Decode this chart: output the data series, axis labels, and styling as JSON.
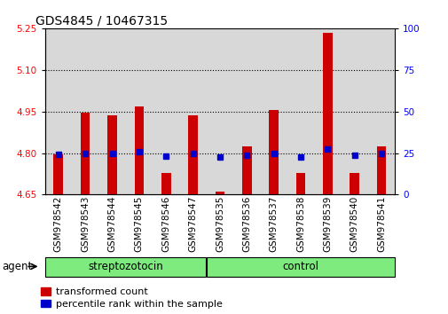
{
  "title": "GDS4845 / 10467315",
  "samples": [
    "GSM978542",
    "GSM978543",
    "GSM978544",
    "GSM978545",
    "GSM978546",
    "GSM978547",
    "GSM978535",
    "GSM978536",
    "GSM978537",
    "GSM978538",
    "GSM978539",
    "GSM978540",
    "GSM978541"
  ],
  "groups": [
    "streptozotocin",
    "streptozotocin",
    "streptozotocin",
    "streptozotocin",
    "streptozotocin",
    "streptozotocin",
    "control",
    "control",
    "control",
    "control",
    "control",
    "control",
    "control"
  ],
  "red_values": [
    4.795,
    4.947,
    4.937,
    4.969,
    4.728,
    4.937,
    4.662,
    4.825,
    4.954,
    4.728,
    5.235,
    4.728,
    4.825
  ],
  "blue_values": [
    4.795,
    4.8,
    4.8,
    4.805,
    4.79,
    4.8,
    4.787,
    4.793,
    4.8,
    4.787,
    4.815,
    4.793,
    4.8
  ],
  "ylim_left": [
    4.65,
    5.25
  ],
  "ylim_right": [
    0,
    100
  ],
  "yticks_left": [
    4.65,
    4.8,
    4.95,
    5.1,
    5.25
  ],
  "yticks_right": [
    0,
    25,
    50,
    75,
    100
  ],
  "bar_color": "#cc0000",
  "marker_color": "#0000cc",
  "baseline": 4.65,
  "group_label": "agent",
  "group_color": "#7deb7d",
  "legend_items": [
    "transformed count",
    "percentile rank within the sample"
  ],
  "title_fontsize": 10,
  "tick_fontsize": 7.5,
  "label_fontsize": 8.5,
  "col_bg_color": "#d8d8d8"
}
